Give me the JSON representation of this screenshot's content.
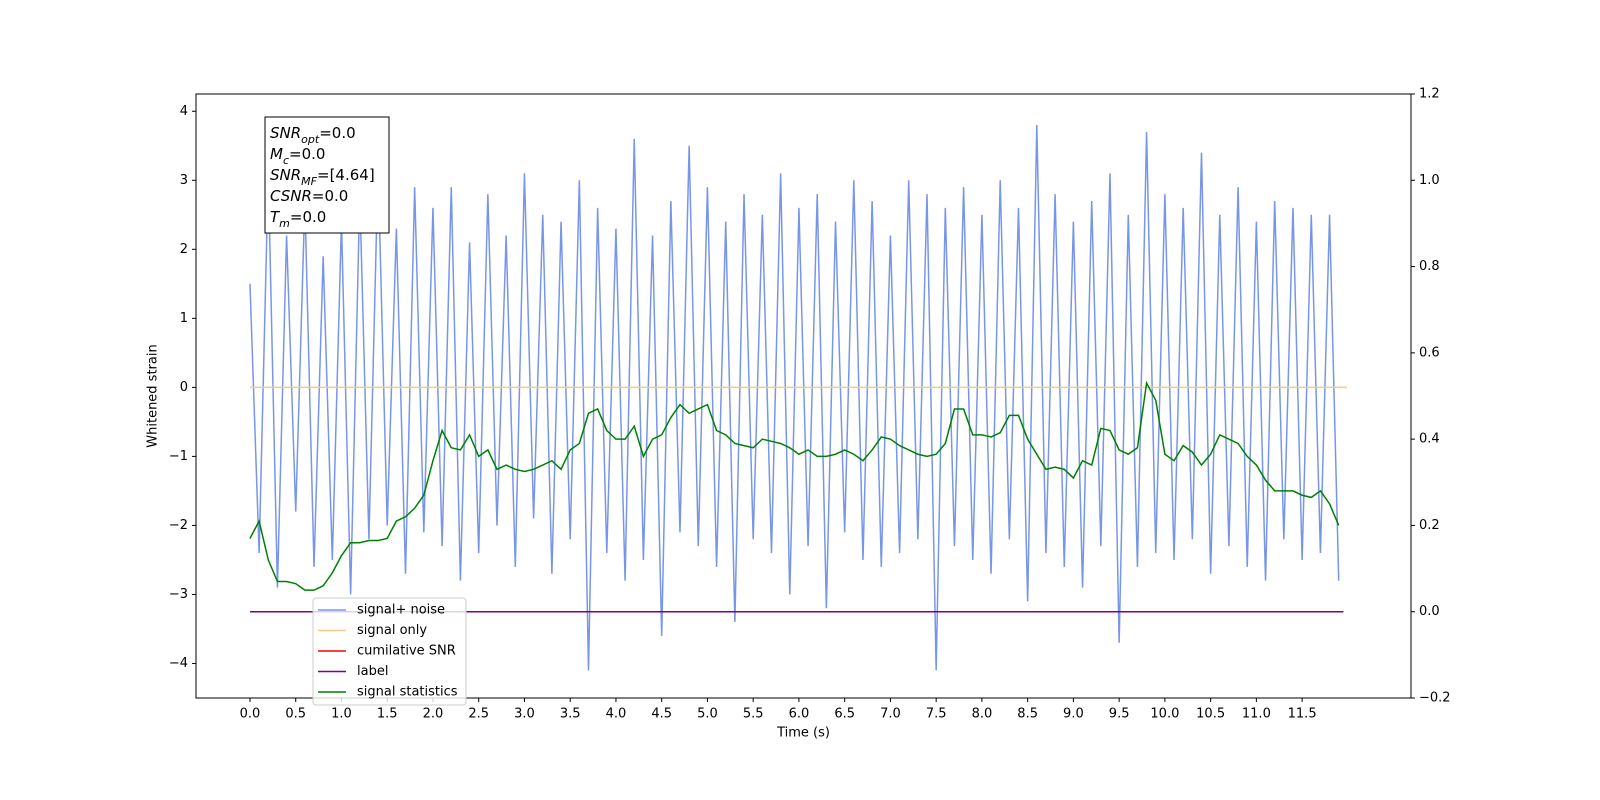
{
  "chart_data": {
    "type": "line",
    "xlabel": "Time (s)",
    "ylabel": "Whitened strain",
    "xlim": [
      -0.59,
      12.69
    ],
    "ylim": [
      -4.5,
      4.25
    ],
    "y2lim": [
      -0.2,
      1.2
    ],
    "xticks": [
      {
        "value": 0,
        "label": "0.0"
      },
      0.5,
      {
        "value": 1,
        "label": "1.0"
      },
      1.5,
      {
        "value": 2,
        "label": "2.0"
      },
      2.5,
      {
        "value": 3,
        "label": "3.0"
      },
      3.5,
      {
        "value": 4,
        "label": "4.0"
      },
      4.5,
      {
        "value": 5,
        "label": "5.0"
      },
      5.5,
      {
        "value": 6,
        "label": "6.0"
      },
      6.5,
      {
        "value": 7,
        "label": "7.0"
      },
      7.5,
      {
        "value": 8,
        "label": "8.0"
      },
      8.5,
      {
        "value": 9,
        "label": "9.0"
      },
      9.5,
      {
        "value": 10,
        "label": "10.0"
      },
      10.5,
      {
        "value": 11,
        "label": "11.0"
      },
      11.5
    ],
    "yticks": [
      {
        "value": -4,
        "label": "−4"
      },
      {
        "value": -3,
        "label": "−3"
      },
      {
        "value": -2,
        "label": "−2"
      },
      {
        "value": -1,
        "label": "−1"
      },
      0,
      1,
      2,
      3,
      4
    ],
    "y2ticks": [
      {
        "value": -0.2,
        "label": "−0.2"
      },
      {
        "value": 0,
        "label": "0.0"
      },
      0.2,
      0.4,
      0.6,
      0.8,
      {
        "value": 1,
        "label": "1.0"
      },
      1.2
    ],
    "legend": "lower left",
    "x": [
      0,
      0.1,
      0.2,
      0.3,
      0.4,
      0.5,
      0.6,
      0.7,
      0.8,
      0.9,
      1,
      1.1,
      1.2,
      1.3,
      1.4,
      1.5,
      1.6,
      1.7,
      1.8,
      1.9,
      2,
      2.1,
      2.2,
      2.3,
      2.4,
      2.5,
      2.6,
      2.7,
      2.8,
      2.9,
      3,
      3.1,
      3.2,
      3.3,
      3.4,
      3.5,
      3.6,
      3.7,
      3.8,
      3.9,
      4,
      4.1,
      4.2,
      4.3,
      4.4,
      4.5,
      4.6,
      4.7,
      4.8,
      4.9,
      5,
      5.1,
      5.2,
      5.3,
      5.4,
      5.5,
      5.6,
      5.7,
      5.8,
      5.9,
      6,
      6.1,
      6.2,
      6.3,
      6.4,
      6.5,
      6.6,
      6.7,
      6.8,
      6.9,
      7,
      7.1,
      7.2,
      7.3,
      7.4,
      7.5,
      7.6,
      7.7,
      7.8,
      7.9,
      8,
      8.1,
      8.2,
      8.3,
      8.4,
      8.5,
      8.6,
      8.7,
      8.8,
      8.9,
      9,
      9.1,
      9.2,
      9.3,
      9.4,
      9.5,
      9.6,
      9.7,
      9.8,
      9.9,
      10,
      10.1,
      10.2,
      10.3,
      10.4,
      10.5,
      10.6,
      10.7,
      10.8,
      10.9,
      11,
      11.1,
      11.2,
      11.3,
      11.4,
      11.5,
      11.6,
      11.7,
      11.8,
      11.9
    ],
    "series": [
      {
        "name": "signal+ noise",
        "color": "#7896e8",
        "values": [
          1.5,
          -2.4,
          3.1,
          -2.9,
          2.2,
          -1.8,
          2.7,
          -2.6,
          1.9,
          -2.5,
          2.4,
          -3.0,
          2.8,
          -2.2,
          3.2,
          -2.0,
          2.3,
          -2.7,
          2.9,
          -2.1,
          2.6,
          -2.3,
          2.9,
          -2.8,
          2.1,
          -2.4,
          2.8,
          -2.0,
          2.2,
          -2.6,
          3.1,
          -1.9,
          2.5,
          -2.7,
          2.4,
          -2.2,
          3.0,
          -4.1,
          2.6,
          -2.4,
          2.3,
          -2.8,
          3.6,
          -2.5,
          2.2,
          -3.6,
          2.7,
          -2.1,
          3.5,
          -2.3,
          2.9,
          -2.6,
          2.4,
          -3.4,
          2.8,
          -2.2,
          2.5,
          -2.4,
          3.1,
          -3.0,
          2.6,
          -2.3,
          2.8,
          -3.2,
          2.4,
          -2.1,
          3.0,
          -2.5,
          2.7,
          -2.6,
          2.2,
          -2.4,
          3.0,
          -2.2,
          2.8,
          -4.1,
          2.6,
          -2.3,
          2.9,
          -2.5,
          2.5,
          -2.7,
          3.0,
          -2.2,
          2.6,
          -3.1,
          3.8,
          -2.4,
          2.8,
          -2.6,
          2.4,
          -2.9,
          2.7,
          -2.3,
          3.1,
          -3.7,
          2.5,
          -2.6,
          3.7,
          -2.4,
          2.8,
          -2.5,
          2.6,
          -2.2,
          3.4,
          -2.7,
          2.5,
          -2.3,
          2.9,
          -2.6,
          2.4,
          -2.8,
          2.7,
          -2.2,
          2.6,
          -2.5,
          2.5,
          -2.4,
          2.5,
          -2.8
        ]
      },
      {
        "name": "signal only",
        "color": "#f7c98a",
        "x": [
          0,
          11.99
        ],
        "values": [
          0,
          0
        ]
      },
      {
        "name": "cumilative SNR",
        "color": "#ff0000",
        "axis": "y2",
        "x": [
          0,
          11.95
        ],
        "values": [
          0,
          0
        ]
      },
      {
        "name": "label",
        "color": "#800080",
        "axis": "y2",
        "x": [
          0,
          11.95
        ],
        "values": [
          0,
          0
        ]
      },
      {
        "name": "signal statistics",
        "color": "#008000",
        "axis": "y2",
        "values": [
          0.17,
          0.21,
          0.12,
          0.07,
          0.07,
          0.065,
          0.05,
          0.05,
          0.06,
          0.09,
          0.13,
          0.16,
          0.16,
          0.165,
          0.165,
          0.17,
          0.21,
          0.22,
          0.24,
          0.27,
          0.35,
          0.42,
          0.38,
          0.375,
          0.41,
          0.36,
          0.375,
          0.33,
          0.34,
          0.33,
          0.325,
          0.33,
          0.34,
          0.35,
          0.33,
          0.375,
          0.39,
          0.46,
          0.47,
          0.42,
          0.4,
          0.4,
          0.43,
          0.36,
          0.4,
          0.41,
          0.45,
          0.48,
          0.46,
          0.47,
          0.48,
          0.42,
          0.41,
          0.39,
          0.385,
          0.38,
          0.4,
          0.395,
          0.39,
          0.38,
          0.365,
          0.375,
          0.36,
          0.36,
          0.365,
          0.375,
          0.365,
          0.35,
          0.375,
          0.405,
          0.4,
          0.385,
          0.375,
          0.365,
          0.36,
          0.365,
          0.39,
          0.47,
          0.47,
          0.41,
          0.41,
          0.405,
          0.415,
          0.455,
          0.455,
          0.4,
          0.365,
          0.33,
          0.335,
          0.33,
          0.31,
          0.35,
          0.34,
          0.425,
          0.42,
          0.375,
          0.365,
          0.38,
          0.53,
          0.49,
          0.365,
          0.35,
          0.385,
          0.37,
          0.34,
          0.365,
          0.41,
          0.4,
          0.39,
          0.36,
          0.34,
          0.305,
          0.28,
          0.28,
          0.28,
          0.27,
          0.265,
          0.28,
          0.25,
          0.2
        ]
      }
    ],
    "annotations": [
      {
        "text": "SNR",
        "sub": "opt",
        "value": "=0.0"
      },
      {
        "text": "M",
        "sub": "c",
        "value": "=0.0"
      },
      {
        "text": "SNR",
        "sub": "MF",
        "value": "=[4.64]"
      },
      {
        "text": "CSNR",
        "value": "=0.0"
      },
      {
        "text": "T",
        "sub": "m",
        "value": "=0.0"
      }
    ]
  }
}
